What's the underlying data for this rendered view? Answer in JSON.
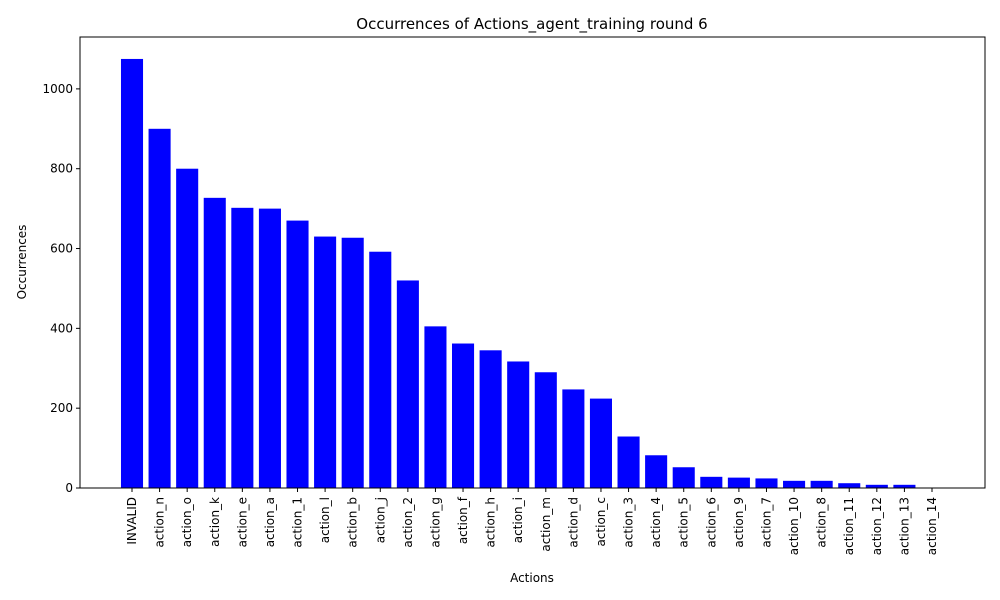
{
  "chart_data": {
    "type": "bar",
    "title": "Occurrences of Actions_agent_training round 6",
    "xlabel": "Actions",
    "ylabel": "Occurrences",
    "ylim": [
      0,
      1130
    ],
    "yticks": [
      0,
      200,
      400,
      600,
      800,
      1000
    ],
    "grid": false,
    "bar_color": "#0000ff",
    "categories": [
      "INVALID",
      "action_n",
      "action_o",
      "action_k",
      "action_e",
      "action_a",
      "action_1",
      "action_l",
      "action_b",
      "action_j",
      "action_2",
      "action_g",
      "action_f",
      "action_h",
      "action_i",
      "action_m",
      "action_d",
      "action_c",
      "action_3",
      "action_4",
      "action_5",
      "action_6",
      "action_9",
      "action_7",
      "action_10",
      "action_8",
      "action_11",
      "action_12",
      "action_13",
      "action_14"
    ],
    "values": [
      1075,
      900,
      800,
      727,
      702,
      700,
      670,
      630,
      627,
      592,
      520,
      405,
      362,
      345,
      317,
      290,
      247,
      224,
      129,
      82,
      52,
      28,
      26,
      24,
      18,
      18,
      12,
      8,
      8,
      1
    ]
  }
}
